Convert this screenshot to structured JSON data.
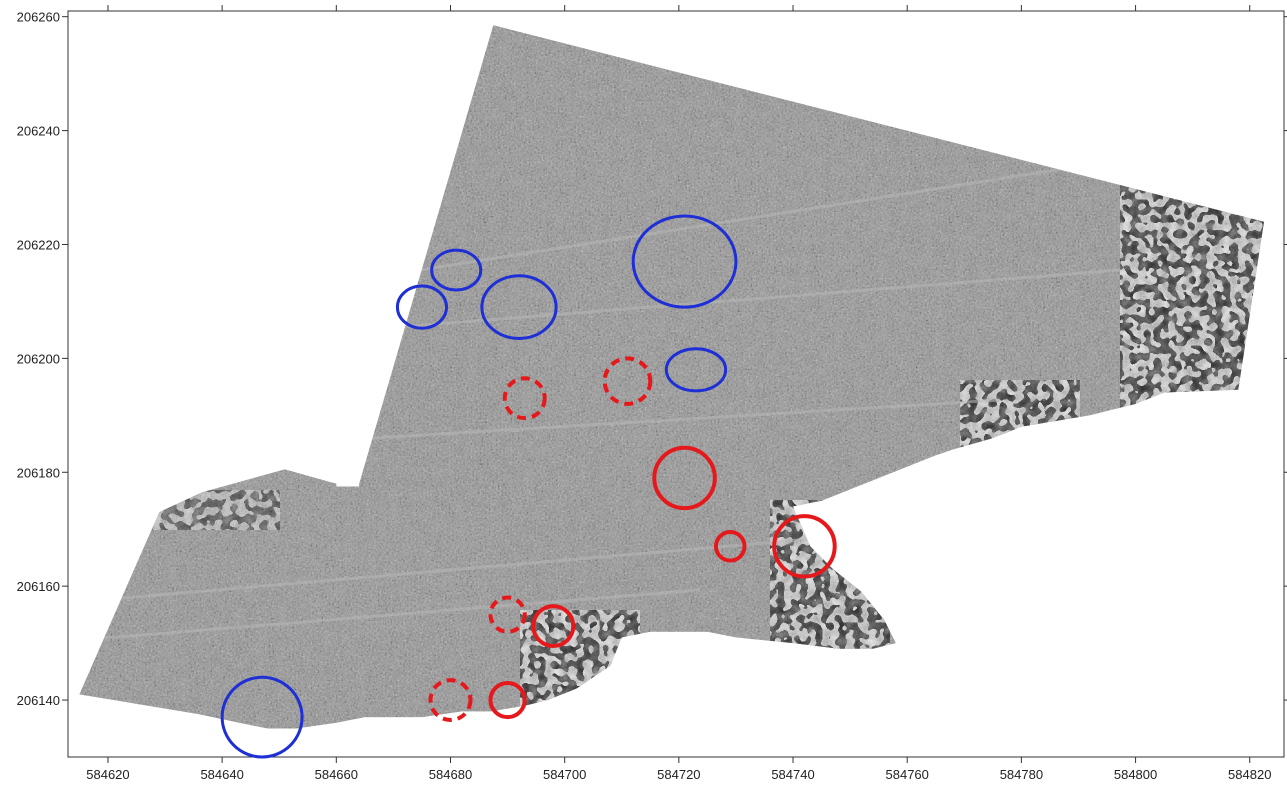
{
  "chart_data": {
    "type": "map",
    "x_axis": {
      "range": [
        584613,
        584826
      ],
      "ticks": [
        584620,
        584640,
        584660,
        584680,
        584700,
        584720,
        584740,
        584760,
        584780,
        584800,
        584820
      ],
      "tick_labels": [
        "584620",
        "584640",
        "584660",
        "584680",
        "584700",
        "584720",
        "584740",
        "584760",
        "584780",
        "584800",
        "584820"
      ]
    },
    "y_axis": {
      "range": [
        206130,
        206261
      ],
      "ticks": [
        206140,
        206160,
        206180,
        206200,
        206220,
        206240,
        206260
      ],
      "tick_labels": [
        "206140",
        "206160",
        "206180",
        "206200",
        "206220",
        "206240",
        "206260"
      ]
    },
    "survey_polygon": [
      [
        584636.5,
        206176.5
      ],
      [
        584651,
        206180.5
      ],
      [
        584660,
        206178
      ],
      [
        584660,
        206177.5
      ],
      [
        584664,
        206177.5
      ],
      [
        584664,
        206178
      ],
      [
        584687.5,
        206258.5
      ],
      [
        584822.5,
        206224
      ],
      [
        584818,
        206194.5
      ],
      [
        584805,
        206194
      ],
      [
        584800,
        206192
      ],
      [
        584792,
        206190
      ],
      [
        584780,
        206188
      ],
      [
        584775,
        206186
      ],
      [
        584768,
        206184
      ],
      [
        584765,
        206183
      ],
      [
        584760,
        206181
      ],
      [
        584755,
        206179
      ],
      [
        584750,
        206177
      ],
      [
        584745,
        206175
      ],
      [
        584740,
        206174
      ],
      [
        584743,
        206167
      ],
      [
        584747,
        206163
      ],
      [
        584752,
        206159
      ],
      [
        584756,
        206154
      ],
      [
        584758,
        206150
      ],
      [
        584754,
        206149
      ],
      [
        584748,
        206149
      ],
      [
        584740,
        206150
      ],
      [
        584730,
        206151
      ],
      [
        584725,
        206152
      ],
      [
        584720,
        206152
      ],
      [
        584715,
        206152
      ],
      [
        584710,
        206151
      ],
      [
        584708,
        206146
      ],
      [
        584705,
        206144
      ],
      [
        584702,
        206142
      ],
      [
        584697,
        206140
      ],
      [
        584693,
        206139
      ],
      [
        584687,
        206138
      ],
      [
        584682,
        206138
      ],
      [
        584675,
        206137
      ],
      [
        584672,
        206137
      ],
      [
        584665,
        206137
      ],
      [
        584660,
        206136
      ],
      [
        584653,
        206135
      ],
      [
        584648,
        206135
      ],
      [
        584643,
        206136
      ],
      [
        584636,
        206137.5
      ],
      [
        584627,
        206139
      ],
      [
        584615,
        206141
      ],
      [
        584629,
        206173
      ]
    ],
    "features": [
      {
        "type": "circle",
        "color": "#1f2fd6",
        "style": "solid",
        "x": 584647,
        "y": 206137,
        "rx": 7,
        "ry": 7
      },
      {
        "type": "circle",
        "color": "#1f2fd6",
        "style": "solid",
        "x": 584675,
        "y": 206209,
        "rx": 4.3,
        "ry": 3.7
      },
      {
        "type": "circle",
        "color": "#1f2fd6",
        "style": "solid",
        "x": 584681,
        "y": 206215.5,
        "rx": 4.3,
        "ry": 3.5
      },
      {
        "type": "circle",
        "color": "#1f2fd6",
        "style": "solid",
        "x": 584692,
        "y": 206209,
        "rx": 6.5,
        "ry": 5.5
      },
      {
        "type": "circle",
        "color": "#1f2fd6",
        "style": "solid",
        "x": 584721,
        "y": 206217,
        "rx": 9,
        "ry": 8
      },
      {
        "type": "circle",
        "color": "#1f2fd6",
        "style": "solid",
        "x": 584723,
        "y": 206198,
        "rx": 5.2,
        "ry": 3.7
      },
      {
        "type": "circle",
        "color": "#e5191b",
        "style": "dashed",
        "x": 584693,
        "y": 206193,
        "rx": 3.5,
        "ry": 3.5
      },
      {
        "type": "circle",
        "color": "#e5191b",
        "style": "dashed",
        "x": 584711,
        "y": 206196,
        "rx": 4,
        "ry": 4
      },
      {
        "type": "circle",
        "color": "#e5191b",
        "style": "solid",
        "x": 584721,
        "y": 206179,
        "rx": 5.3,
        "ry": 5.3
      },
      {
        "type": "circle",
        "color": "#e5191b",
        "style": "solid",
        "x": 584729,
        "y": 206167,
        "rx": 2.5,
        "ry": 2.5
      },
      {
        "type": "circle",
        "color": "#e5191b",
        "style": "solid",
        "x": 584742,
        "y": 206167,
        "rx": 5.3,
        "ry": 5.3
      },
      {
        "type": "circle",
        "color": "#e5191b",
        "style": "dashed",
        "x": 584690,
        "y": 206155,
        "rx": 3,
        "ry": 3
      },
      {
        "type": "circle",
        "color": "#e5191b",
        "style": "solid",
        "x": 584698,
        "y": 206153,
        "rx": 3.5,
        "ry": 3.5
      },
      {
        "type": "circle",
        "color": "#e5191b",
        "style": "dashed",
        "x": 584680,
        "y": 206140,
        "rx": 3.5,
        "ry": 3.5
      },
      {
        "type": "circle",
        "color": "#e5191b",
        "style": "solid",
        "x": 584690,
        "y": 206140,
        "rx": 3,
        "ry": 3
      }
    ]
  }
}
